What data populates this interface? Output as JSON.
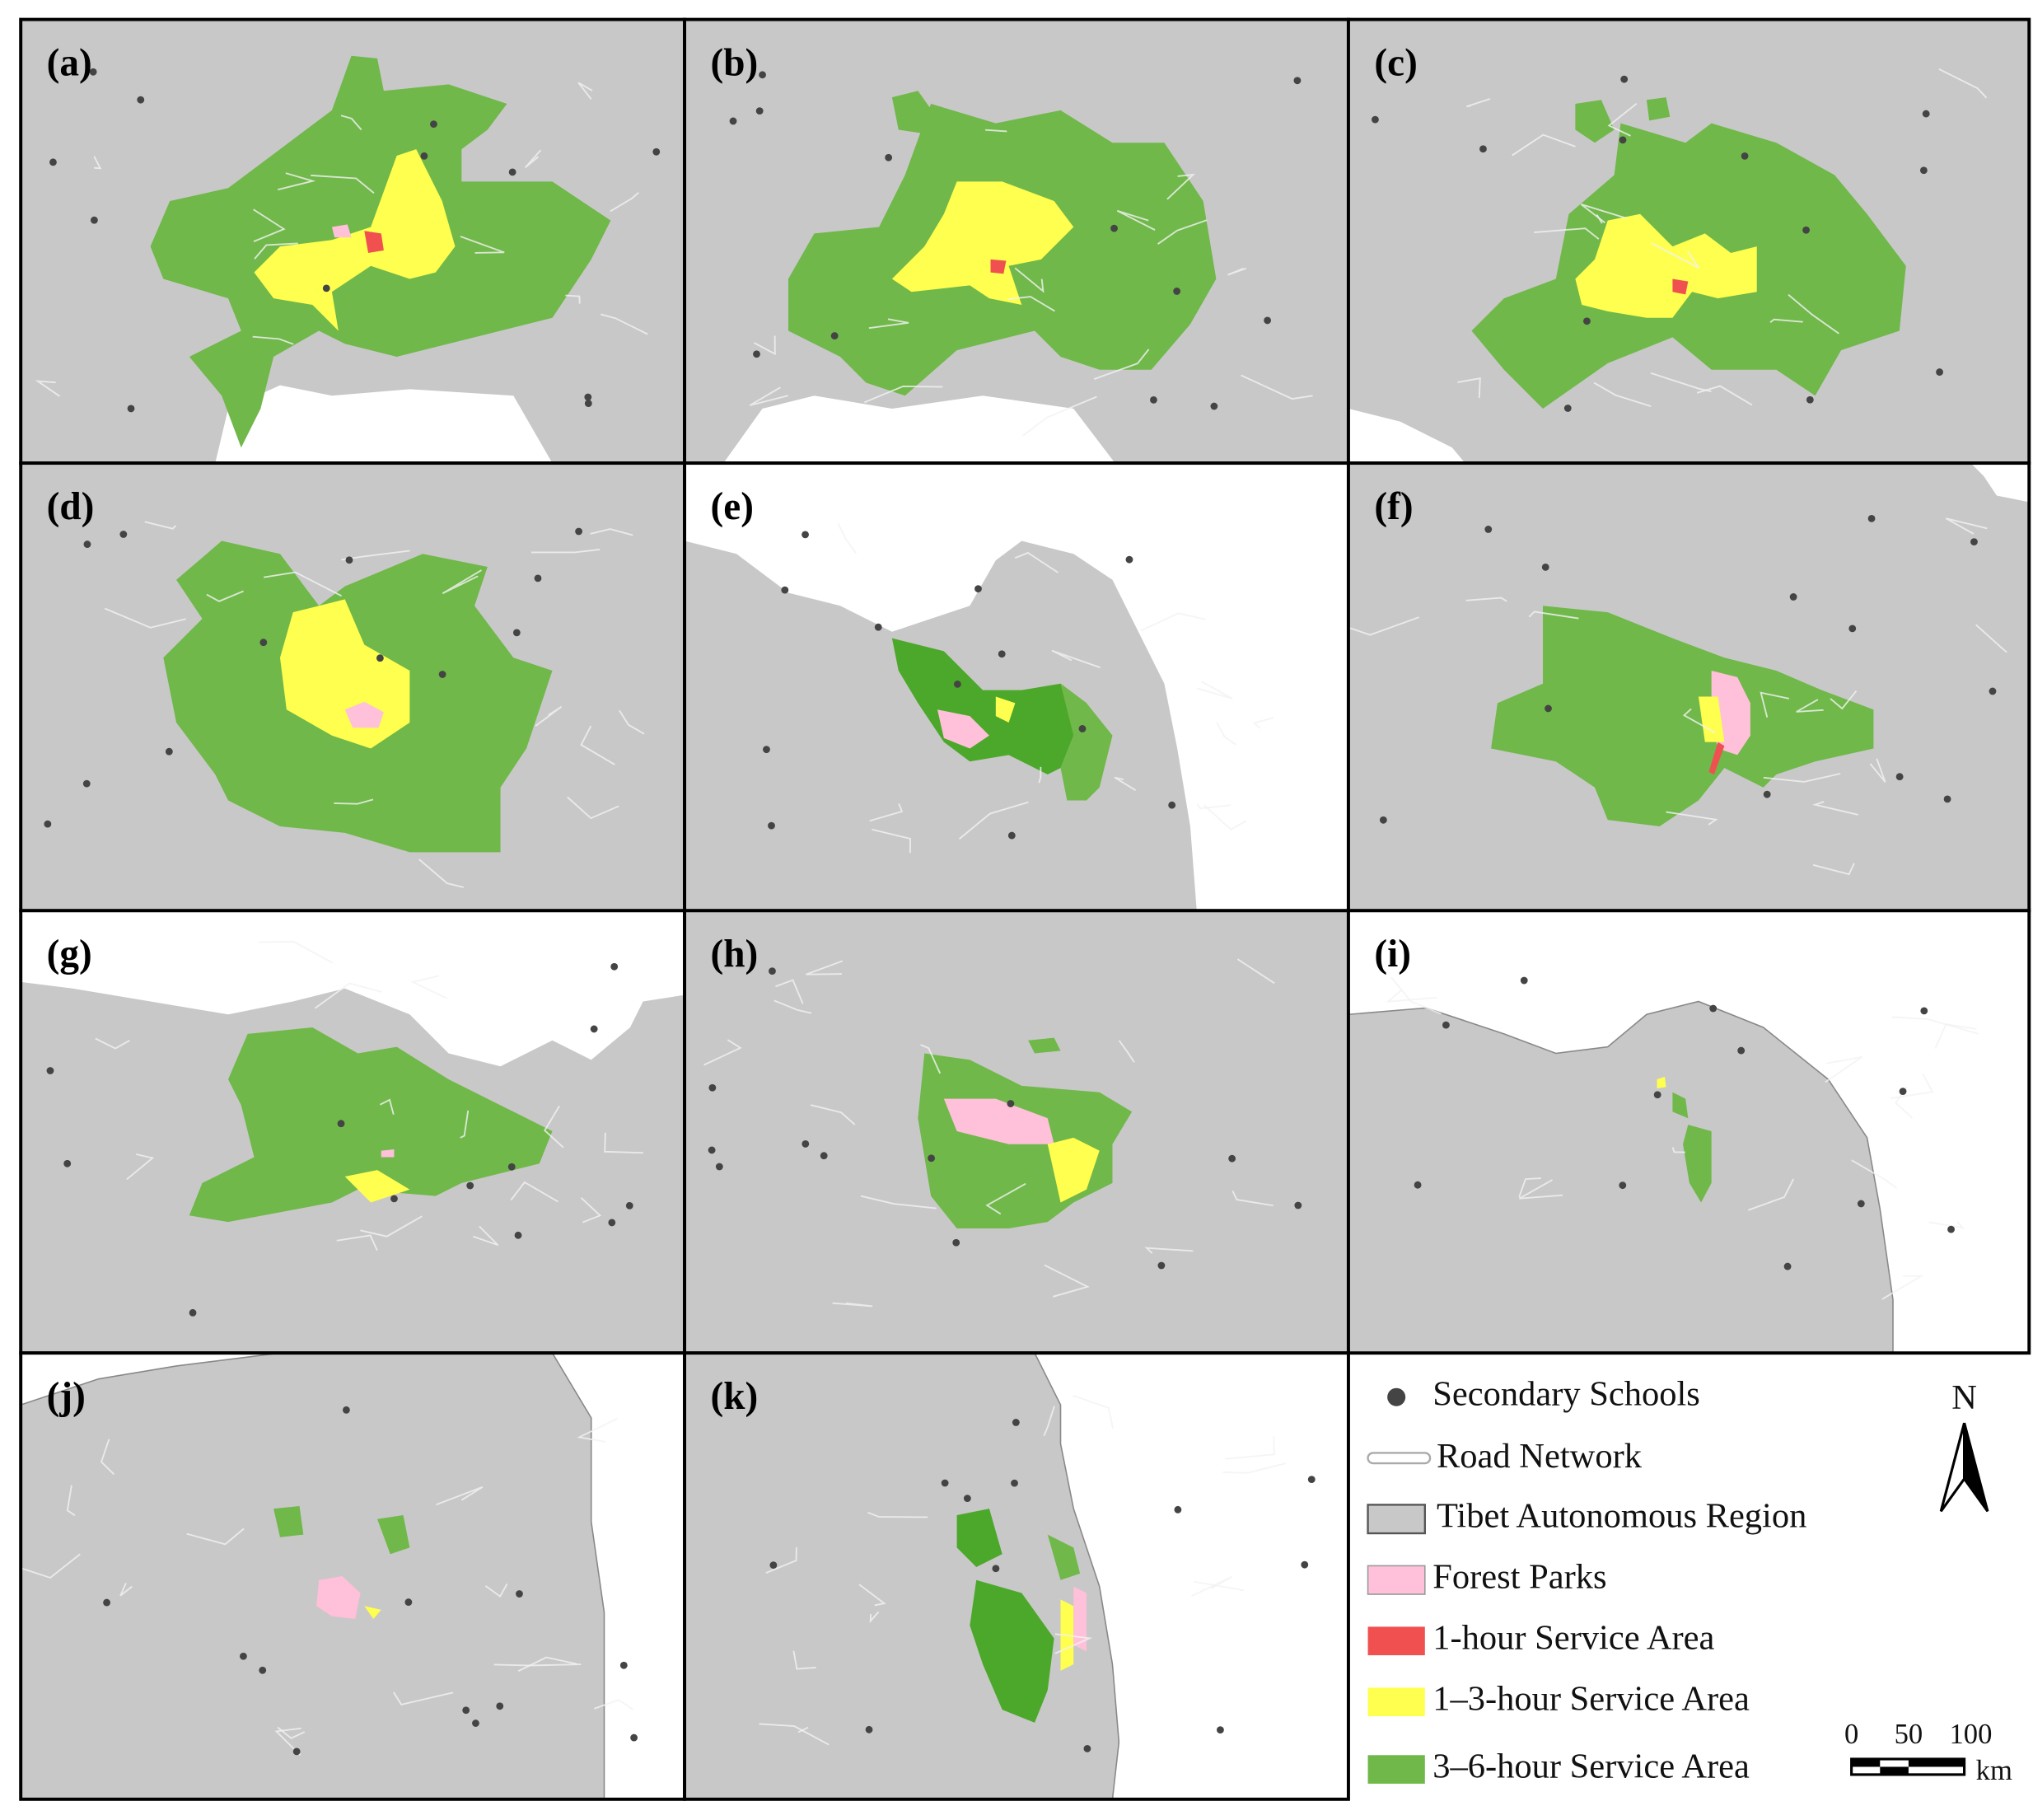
{
  "panels": [
    "(a)",
    "(b)",
    "(c)",
    "(d)",
    "(e)",
    "(f)",
    "(g)",
    "(h)",
    "(i)",
    "(j)",
    "(k)"
  ],
  "legend": {
    "items": [
      "Secondary Schools",
      "Road Network",
      "Tibet Autonomous Region",
      "Forest Parks",
      "1-hour Service Area",
      "1–3-hour Service Area",
      "3–6-hour Service Area"
    ],
    "north": "N",
    "scale": {
      "labels": [
        "0",
        "50",
        "100"
      ],
      "unit": "km"
    }
  }
}
